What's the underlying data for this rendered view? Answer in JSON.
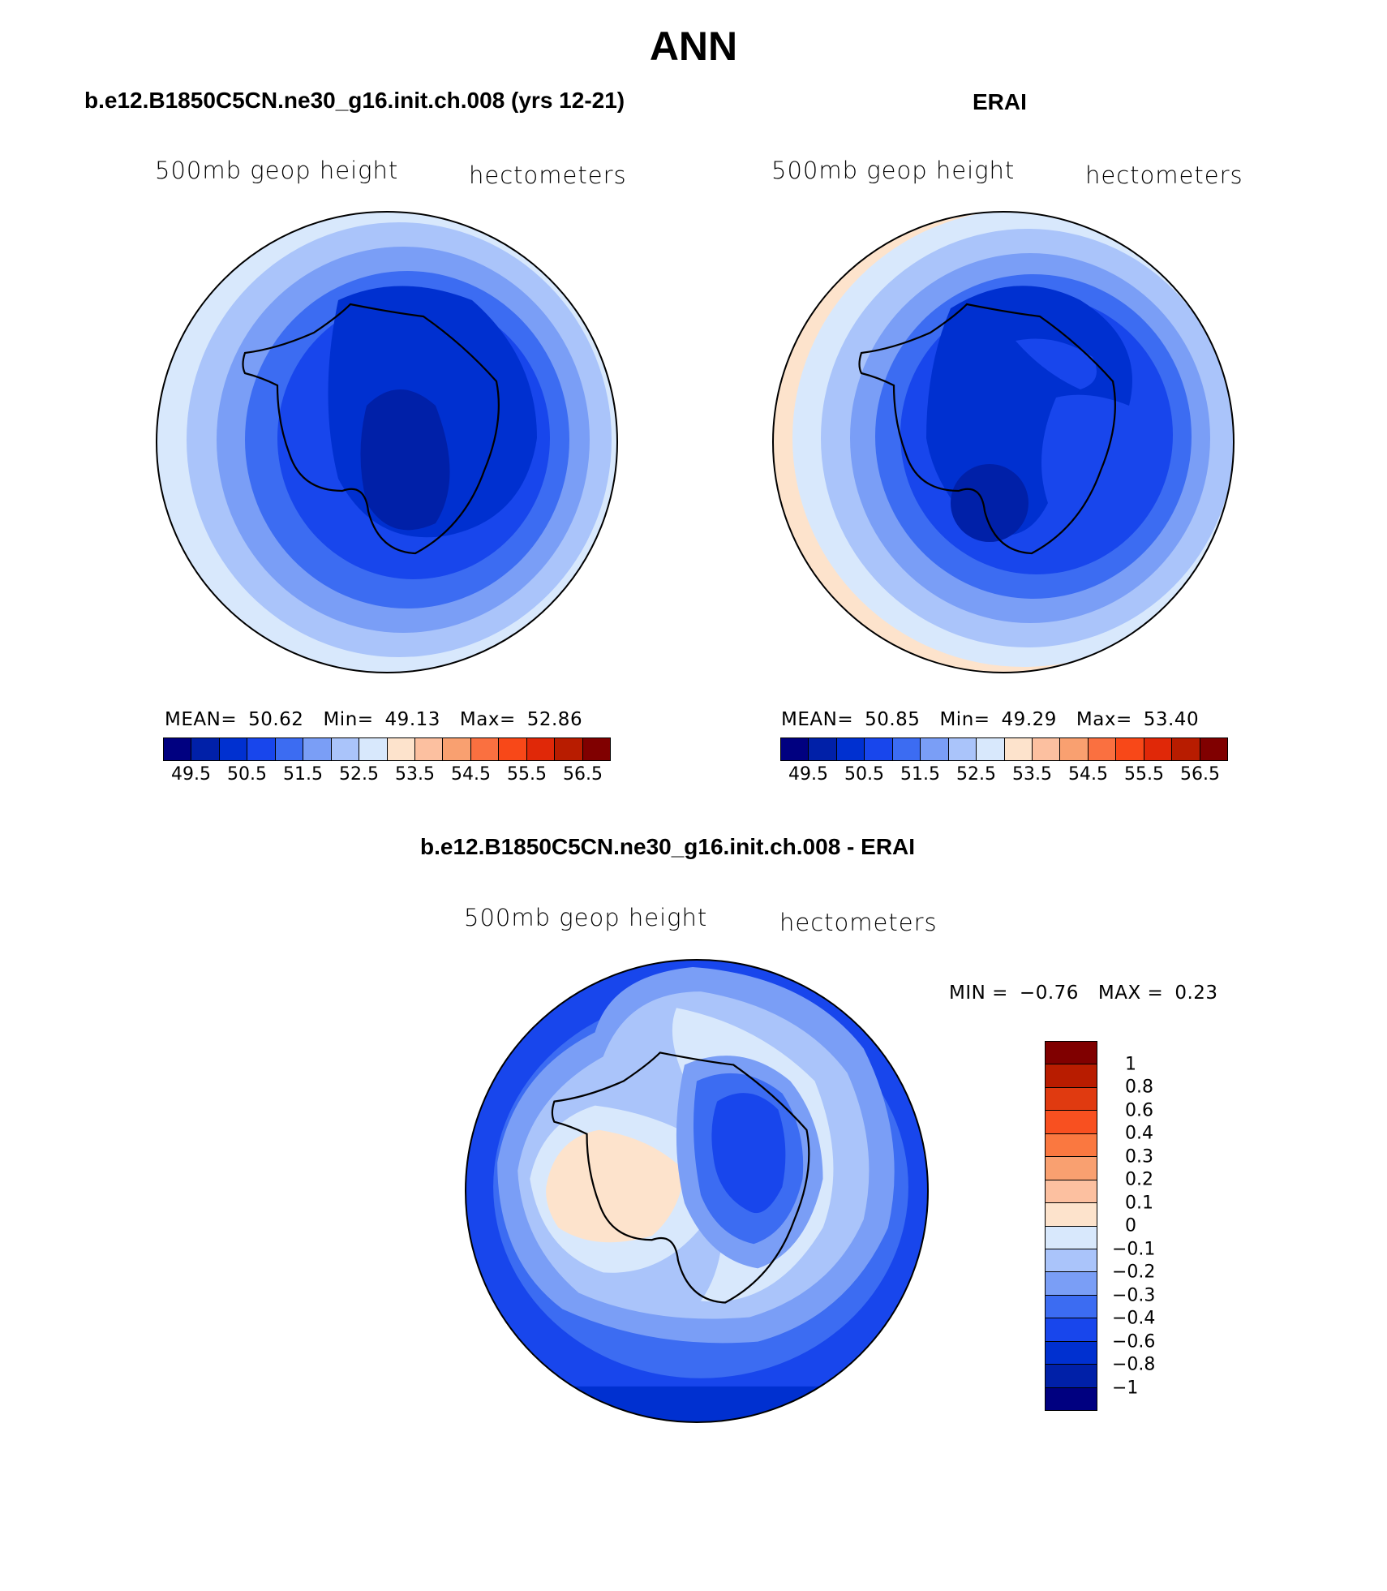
{
  "figure": {
    "title": "ANN",
    "panels": [
      {
        "id": "model",
        "title": "b.e12.B1850C5CN.ne30_g16.init.ch.008 (yrs 12-21)",
        "variable": "500mb geop height",
        "units": "hectometers",
        "stats": {
          "mean_label": "MEAN=",
          "mean": "50.62",
          "min_label": "Min=",
          "min": "49.13",
          "max_label": "Max=",
          "max": "52.86"
        },
        "colorbar": {
          "colors": [
            "#000080",
            "#0020a8",
            "#0030d0",
            "#1846ec",
            "#3c6cf2",
            "#7a9ef6",
            "#aac4fa",
            "#d8e8fc",
            "#fde3cc",
            "#fcc0a0",
            "#f9a070",
            "#fa7040",
            "#f84818",
            "#e02808",
            "#b81c00",
            "#800000"
          ],
          "labels": [
            "49.5",
            "50.5",
            "51.5",
            "52.5",
            "53.5",
            "54.5",
            "55.5",
            "56.5"
          ]
        }
      },
      {
        "id": "obs",
        "title": "ERAI",
        "variable": "500mb geop height",
        "units": "hectometers",
        "stats": {
          "mean_label": "MEAN=",
          "mean": "50.85",
          "min_label": "Min=",
          "min": "49.29",
          "max_label": "Max=",
          "max": "53.40"
        },
        "colorbar": {
          "colors": [
            "#000080",
            "#0020a8",
            "#0030d0",
            "#1846ec",
            "#3c6cf2",
            "#7a9ef6",
            "#aac4fa",
            "#d8e8fc",
            "#fde3cc",
            "#fcc0a0",
            "#f9a070",
            "#fa7040",
            "#f84818",
            "#e02808",
            "#b81c00",
            "#800000"
          ],
          "labels": [
            "49.5",
            "50.5",
            "51.5",
            "52.5",
            "53.5",
            "54.5",
            "55.5",
            "56.5"
          ]
        }
      },
      {
        "id": "diff",
        "title": "b.e12.B1850C5CN.ne30_g16.init.ch.008 - ERAI",
        "variable": "500mb geop height",
        "units": "hectometers",
        "stats": {
          "min_label": "MIN =",
          "min": "−0.76",
          "max_label": "MAX =",
          "max": "0.23"
        },
        "colorbar": {
          "colors": [
            "#800000",
            "#b81c00",
            "#e03a10",
            "#f85020",
            "#fa7840",
            "#f9a070",
            "#fcc0a0",
            "#fde3cc",
            "#d8e8fc",
            "#aac4fa",
            "#7a9ef6",
            "#3c6cf2",
            "#1846ec",
            "#0030d0",
            "#0020a8",
            "#000080"
          ],
          "labels": [
            "1",
            "0.8",
            "0.6",
            "0.4",
            "0.3",
            "0.2",
            "0.1",
            "0",
            "−0.1",
            "−0.2",
            "−0.3",
            "−0.4",
            "−0.6",
            "−0.8",
            "−1"
          ]
        }
      }
    ]
  }
}
